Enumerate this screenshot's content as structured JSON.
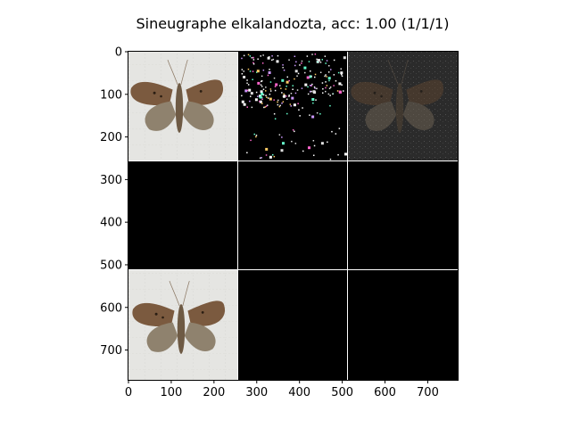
{
  "chart_data": {
    "type": "image-grid",
    "title": "Sineugraphe elkalandozta, acc: 1.00 (1/1/1)",
    "x_ticks": [
      "0",
      "100",
      "200",
      "300",
      "400",
      "500",
      "600",
      "700"
    ],
    "y_ticks": [
      "0",
      "100",
      "200",
      "300",
      "400",
      "500",
      "600",
      "700"
    ],
    "xlim": [
      0,
      770
    ],
    "ylim": [
      770,
      0
    ],
    "grid": {
      "rows": 3,
      "cols": 3,
      "tile_size": 256,
      "gap": 1
    },
    "tiles": [
      {
        "row": 0,
        "col": 0,
        "content": "moth-photo"
      },
      {
        "row": 0,
        "col": 1,
        "content": "saliency-speckle"
      },
      {
        "row": 0,
        "col": 2,
        "content": "masked-moth-dark"
      },
      {
        "row": 1,
        "col": 0,
        "content": "black"
      },
      {
        "row": 1,
        "col": 1,
        "content": "black"
      },
      {
        "row": 1,
        "col": 2,
        "content": "black"
      },
      {
        "row": 2,
        "col": 0,
        "content": "moth-photo"
      },
      {
        "row": 2,
        "col": 1,
        "content": "black"
      },
      {
        "row": 2,
        "col": 2,
        "content": "black"
      }
    ],
    "colors": {
      "tile_black": "#000000",
      "photo_bg": "#e6e6e4",
      "moth_brown": "#7b5a3f",
      "moth_hind": "#8f826e",
      "divider": "#ffffff"
    }
  }
}
